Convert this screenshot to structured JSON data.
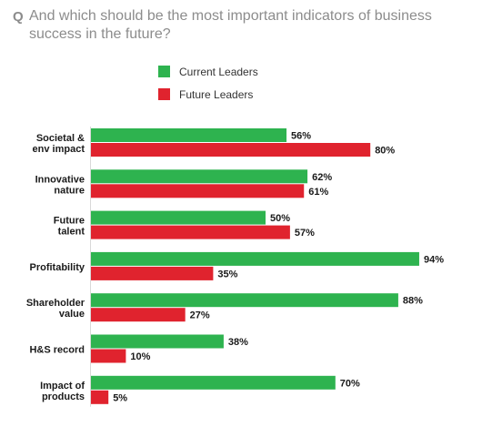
{
  "question": {
    "marker": "Q",
    "text": "And which should be the most important indicators of business success in the future?"
  },
  "colors": {
    "current": "#2eb34f",
    "future": "#e0232e",
    "question": "#8c8c8c"
  },
  "chart_data": {
    "type": "bar",
    "orientation": "horizontal",
    "title": "And which should be the most important indicators of business success in the future?",
    "categories": [
      [
        "Societal &",
        "env impact"
      ],
      [
        "Innovative",
        "nature"
      ],
      [
        "Future",
        "talent"
      ],
      [
        "Profitability"
      ],
      [
        "Shareholder",
        "value"
      ],
      [
        "H&S record"
      ],
      [
        "Impact of",
        "products"
      ]
    ],
    "series": [
      {
        "name": "Current Leaders",
        "color": "#2eb34f",
        "values": [
          56,
          62,
          50,
          94,
          88,
          38,
          70
        ],
        "labels": [
          "56%",
          "62%",
          "50%",
          "94%",
          "88%",
          "38%",
          "70%"
        ]
      },
      {
        "name": "Future Leaders",
        "color": "#e0232e",
        "values": [
          80,
          61,
          57,
          35,
          27,
          10,
          5
        ],
        "labels": [
          "80%",
          "61%",
          "57%",
          "35%",
          "27%",
          "10%",
          "5%"
        ]
      }
    ],
    "xlim": [
      0,
      100
    ],
    "grid": false,
    "legend_position": "top-left"
  }
}
